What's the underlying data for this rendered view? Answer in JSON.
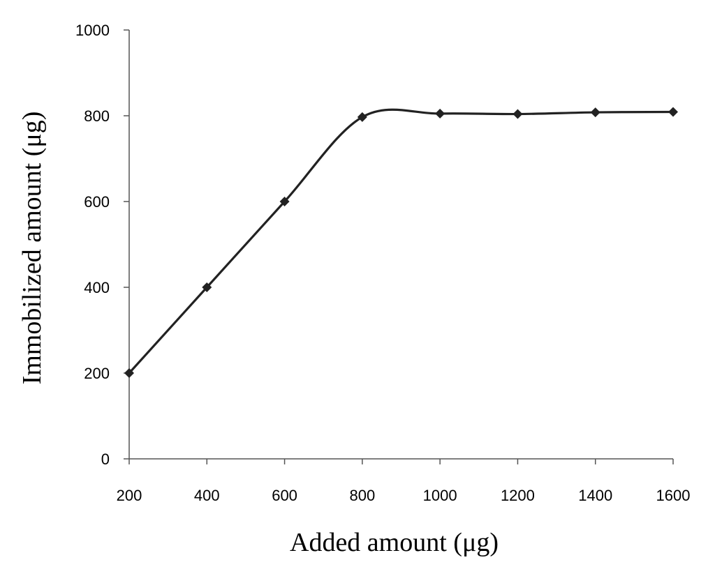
{
  "chart_data": {
    "type": "line",
    "title": "",
    "xlabel": "Added amount (μg)",
    "ylabel": "Immobilized amount (μg)",
    "x": [
      200,
      400,
      600,
      800,
      1000,
      1200,
      1400,
      1600
    ],
    "series": [
      {
        "values": [
          200,
          400,
          600,
          797,
          805,
          804,
          808,
          809
        ]
      }
    ],
    "xticks": [
      "200",
      "400",
      "600",
      "800",
      "1000",
      "1200",
      "1400",
      "1600"
    ],
    "yticks": [
      "0",
      "200",
      "400",
      "600",
      "800",
      "1000"
    ],
    "xlim": [
      200,
      1600
    ],
    "ylim": [
      0,
      1000
    ],
    "grid": false,
    "legend": "none",
    "colors": {
      "line": "#222222",
      "marker": "#222222",
      "axis": "#555555"
    },
    "marker": "diamond",
    "smooth": true
  }
}
